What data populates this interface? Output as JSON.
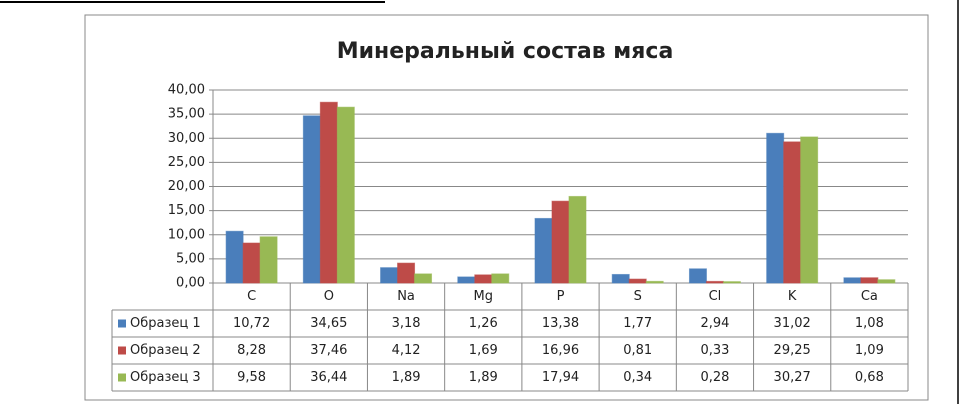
{
  "chart_data": {
    "type": "bar",
    "title": "Минеральный состав мяса",
    "categories": [
      "C",
      "O",
      "Na",
      "Mg",
      "P",
      "S",
      "Cl",
      "K",
      "Ca"
    ],
    "series": [
      {
        "name": "Образец 1",
        "color": "#4a7ebb",
        "values": [
          10.72,
          34.65,
          3.18,
          1.26,
          13.38,
          1.77,
          2.94,
          31.02,
          1.08
        ],
        "value_labels": [
          "10,72",
          "34,65",
          "3,18",
          "1,26",
          "13,38",
          "1,77",
          "2,94",
          "31,02",
          "1,08"
        ]
      },
      {
        "name": "Образец 2",
        "color": "#be4b48",
        "values": [
          8.28,
          37.46,
          4.12,
          1.69,
          16.96,
          0.81,
          0.33,
          29.25,
          1.09
        ],
        "value_labels": [
          "8,28",
          "37,46",
          "4,12",
          "1,69",
          "16,96",
          "0,81",
          "0,33",
          "29,25",
          "1,09"
        ]
      },
      {
        "name": "Образец 3",
        "color": "#98b954",
        "values": [
          9.58,
          36.44,
          1.89,
          1.89,
          17.94,
          0.34,
          0.28,
          30.27,
          0.68
        ],
        "value_labels": [
          "9,58",
          "36,44",
          "1,89",
          "1,89",
          "17,94",
          "0,34",
          "0,28",
          "30,27",
          "0,68"
        ]
      }
    ],
    "ylim": [
      0,
      40
    ],
    "yticks": [
      {
        "value": 0,
        "label": "0,00"
      },
      {
        "value": 5,
        "label": "5,00"
      },
      {
        "value": 10,
        "label": "10,00"
      },
      {
        "value": 15,
        "label": "15,00"
      },
      {
        "value": 20,
        "label": "20,00"
      },
      {
        "value": 25,
        "label": "25,00"
      },
      {
        "value": 30,
        "label": "30,00"
      },
      {
        "value": 35,
        "label": "35,00"
      },
      {
        "value": 40,
        "label": "40,00"
      }
    ],
    "grid": true
  }
}
